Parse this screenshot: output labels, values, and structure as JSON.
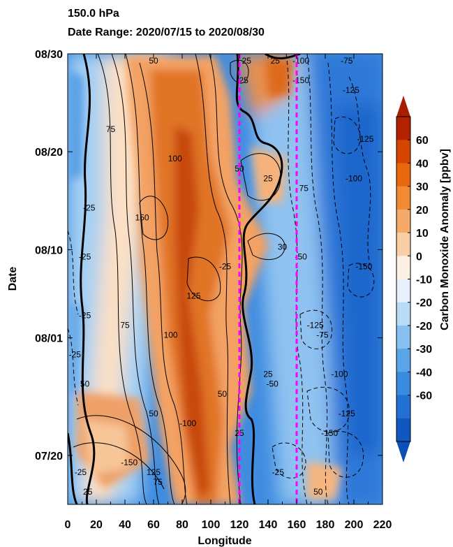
{
  "chart_data": {
    "type": "heatmap",
    "title": "150.0 hPa",
    "subtitle": "Date Range: 2020/07/15 to 2020/08/30",
    "xlabel": "Longitude",
    "ylabel": "Date",
    "xlim": [
      0,
      220
    ],
    "ylim": [
      "2020/07/15",
      "2020/08/30"
    ],
    "x_ticks": [
      0,
      20,
      40,
      60,
      80,
      100,
      120,
      140,
      160,
      180,
      200,
      220
    ],
    "x_tick_labels": [
      "0",
      "20",
      "40",
      "60",
      "80",
      "100",
      "120",
      "140",
      "160",
      "180",
      "200",
      "220"
    ],
    "y_ticks": [
      "2020/07/20",
      "2020/08/01",
      "2020/08/10",
      "2020/08/20",
      "2020/08/30"
    ],
    "y_tick_labels": [
      "07/20",
      "08/01",
      "08/10",
      "08/20",
      "08/30"
    ],
    "colorbar": {
      "label": "Carbon Monoxide Anomaly [ppbv]",
      "labels": [
        "60",
        "40",
        "30",
        "20",
        "10",
        "0",
        "-10",
        "-20",
        "-20",
        "-30",
        "-40",
        "-60"
      ],
      "colors": [
        "#b32200",
        "#d54500",
        "#e8680f",
        "#f28a35",
        "#f5aa6a",
        "#f9cfa6",
        "#fdf1e6",
        "#e6f1fc",
        "#b9dbf5",
        "#86bff0",
        "#5aa5e8",
        "#3a8ae0",
        "#2270d4",
        "#1057c2"
      ],
      "extend": "both"
    },
    "reference_lines_x": [
      120,
      160
    ],
    "reference_line_color": "#ff00ff",
    "contour_labels": [
      {
        "text": "50",
        "x": 60,
        "y": "2020/08/29"
      },
      {
        "text": "25",
        "x": 125,
        "y": "2020/08/29"
      },
      {
        "text": "25",
        "x": 145,
        "y": "2020/08/29"
      },
      {
        "text": "-100",
        "x": 163,
        "y": "2020/08/29"
      },
      {
        "text": "-75",
        "x": 195,
        "y": "2020/08/29"
      },
      {
        "text": "25",
        "x": 123,
        "y": "2020/08/27"
      },
      {
        "text": "-150",
        "x": 163,
        "y": "2020/08/27"
      },
      {
        "text": "-125",
        "x": 198,
        "y": "2020/08/26"
      },
      {
        "text": "75",
        "x": 30,
        "y": "2020/08/22"
      },
      {
        "text": "-125",
        "x": 208,
        "y": "2020/08/21"
      },
      {
        "text": "100",
        "x": 75,
        "y": "2020/08/19"
      },
      {
        "text": "50",
        "x": 120,
        "y": "2020/08/18"
      },
      {
        "text": "-100",
        "x": 200,
        "y": "2020/08/17"
      },
      {
        "text": "25",
        "x": 140,
        "y": "2020/08/17"
      },
      {
        "text": "75",
        "x": 165,
        "y": "2020/08/16"
      },
      {
        "text": "-25",
        "x": 15,
        "y": "2020/08/14"
      },
      {
        "text": "150",
        "x": 52,
        "y": "2020/08/13"
      },
      {
        "text": "30",
        "x": 150,
        "y": "2020/08/10"
      },
      {
        "text": "-25",
        "x": 12,
        "y": "2020/08/09"
      },
      {
        "text": "-50",
        "x": 163,
        "y": "2020/08/09"
      },
      {
        "text": "-25",
        "x": 110,
        "y": "2020/08/08"
      },
      {
        "text": "-150",
        "x": 207,
        "y": "2020/08/08"
      },
      {
        "text": "125",
        "x": 88,
        "y": "2020/08/05"
      },
      {
        "text": "-25",
        "x": 12,
        "y": "2020/08/03"
      },
      {
        "text": "75",
        "x": 40,
        "y": "2020/08/02"
      },
      {
        "text": "-125",
        "x": 173,
        "y": "2020/08/02"
      },
      {
        "text": "100",
        "x": 72,
        "y": "2020/08/01"
      },
      {
        "text": "-75",
        "x": 178,
        "y": "2020/08/01"
      },
      {
        "text": "-25",
        "x": 5,
        "y": "2020/07/30"
      },
      {
        "text": "25",
        "x": 140,
        "y": "2020/07/28"
      },
      {
        "text": "-100",
        "x": 190,
        "y": "2020/07/28"
      },
      {
        "text": "50",
        "x": 12,
        "y": "2020/07/27"
      },
      {
        "text": "-50",
        "x": 143,
        "y": "2020/07/27"
      },
      {
        "text": "50",
        "x": 108,
        "y": "2020/07/26"
      },
      {
        "text": "50",
        "x": 60,
        "y": "2020/07/24"
      },
      {
        "text": "-100",
        "x": 84,
        "y": "2020/07/23"
      },
      {
        "text": "-125",
        "x": 195,
        "y": "2020/07/24"
      },
      {
        "text": "-150",
        "x": 183,
        "y": "2020/07/22"
      },
      {
        "text": "25",
        "x": 120,
        "y": "2020/07/22"
      },
      {
        "text": "-150",
        "x": 43,
        "y": "2020/07/19"
      },
      {
        "text": "125",
        "x": 60,
        "y": "2020/07/18"
      },
      {
        "text": "-25",
        "x": 147,
        "y": "2020/07/18"
      },
      {
        "text": "-25",
        "x": 9,
        "y": "2020/07/18"
      },
      {
        "text": "75",
        "x": 63,
        "y": "2020/07/17"
      },
      {
        "text": "50",
        "x": 175,
        "y": "2020/07/16"
      },
      {
        "text": "25",
        "x": 14,
        "y": "2020/07/16"
      }
    ]
  }
}
